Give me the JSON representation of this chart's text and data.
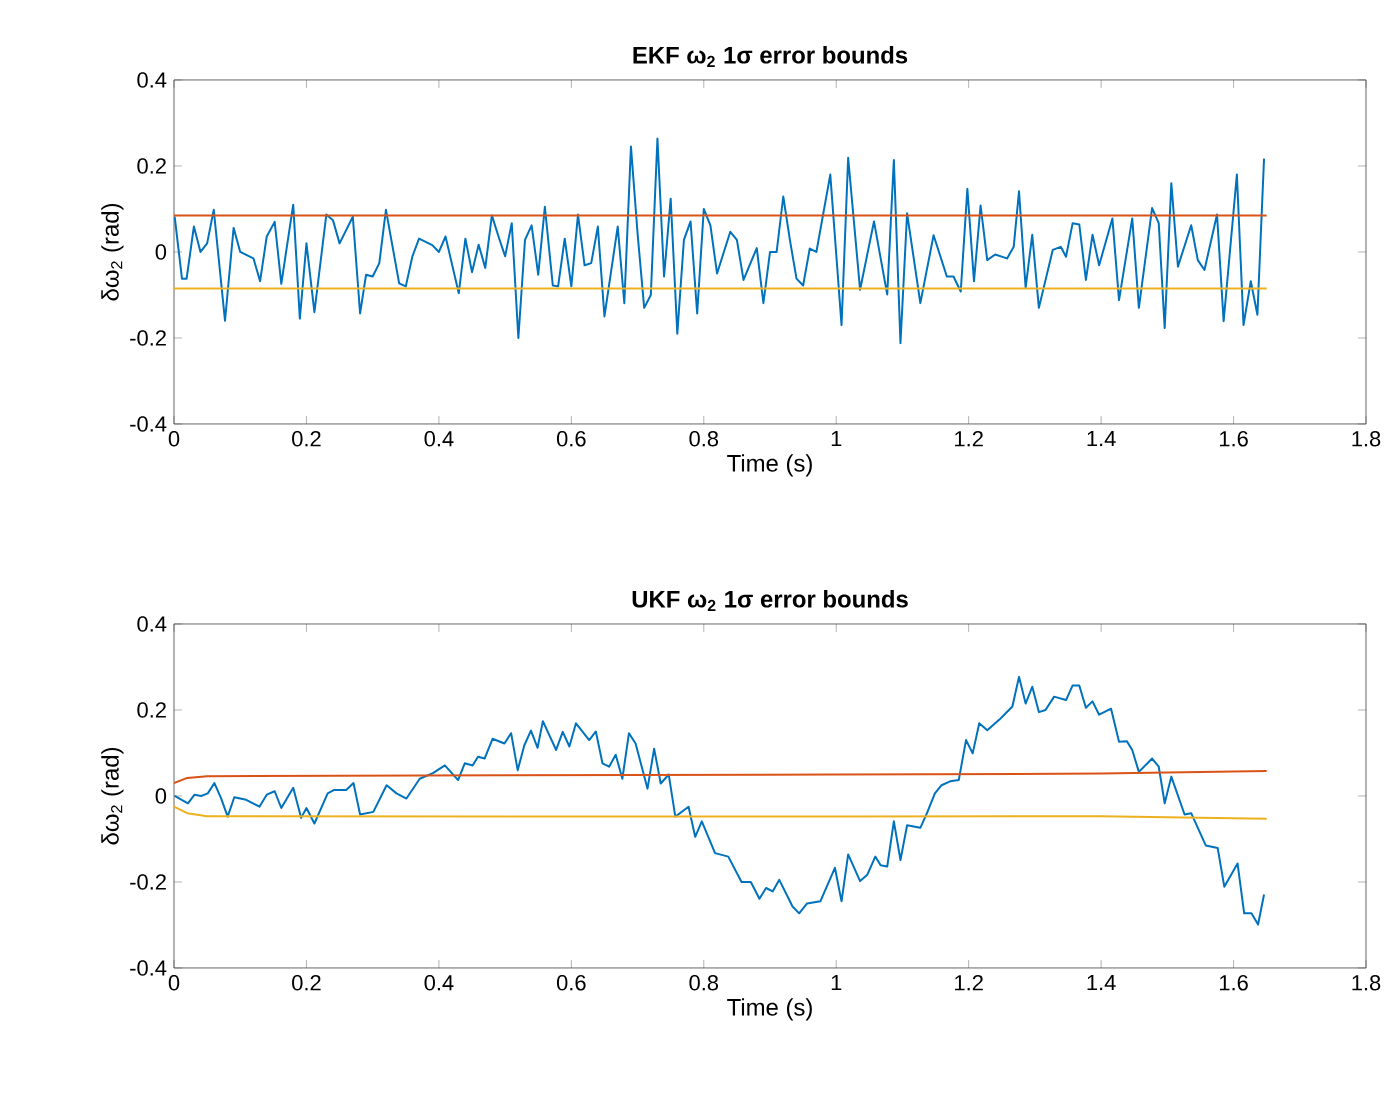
{
  "chart_data": [
    {
      "type": "line",
      "title": "EKF ω$_{2}$ 1σ error bounds",
      "xlabel": "Time (s)",
      "ylabel": "δω$_{2}$ (rad)",
      "xlim": [
        0,
        1.8
      ],
      "ylim": [
        -0.4,
        0.4
      ],
      "xticks": [
        0,
        0.2,
        0.4,
        0.6,
        0.8,
        1,
        1.2,
        1.4,
        1.6,
        1.8
      ],
      "yticks": [
        -0.4,
        -0.2,
        0,
        0.2,
        0.4
      ],
      "series": [
        {
          "color": "#0072bd",
          "x": [
            0.001,
            0.012,
            0.019,
            0.03,
            0.04,
            0.05,
            0.06,
            0.077,
            0.09,
            0.1,
            0.12,
            0.13,
            0.14,
            0.152,
            0.162,
            0.18,
            0.19,
            0.2,
            0.212,
            0.23,
            0.24,
            0.25,
            0.27,
            0.281,
            0.29,
            0.3,
            0.31,
            0.32,
            0.34,
            0.35,
            0.36,
            0.37,
            0.39,
            0.4,
            0.41,
            0.43,
            0.44,
            0.45,
            0.46,
            0.47,
            0.48,
            0.49,
            0.5,
            0.51,
            0.52,
            0.53,
            0.54,
            0.55,
            0.56,
            0.572,
            0.58,
            0.59,
            0.6,
            0.61,
            0.62,
            0.63,
            0.64,
            0.65,
            0.67,
            0.68,
            0.69,
            0.7,
            0.71,
            0.72,
            0.73,
            0.74,
            0.75,
            0.76,
            0.77,
            0.78,
            0.79,
            0.8,
            0.81,
            0.82,
            0.84,
            0.85,
            0.86,
            0.88,
            0.89,
            0.9,
            0.91,
            0.92,
            0.93,
            0.94,
            0.95,
            0.96,
            0.97,
            0.991,
            1.008,
            1.018,
            1.036,
            1.057,
            1.077,
            1.087,
            1.097,
            1.107,
            1.127,
            1.147,
            1.167,
            1.177,
            1.188,
            1.198,
            1.208,
            1.218,
            1.228,
            1.24,
            1.258,
            1.268,
            1.276,
            1.286,
            1.296,
            1.306,
            1.327,
            1.339,
            1.347,
            1.357,
            1.367,
            1.377,
            1.387,
            1.397,
            1.417,
            1.427,
            1.447,
            1.457,
            1.477,
            1.487,
            1.496,
            1.506,
            1.516,
            1.536,
            1.546,
            1.556,
            1.575,
            1.585,
            1.605,
            1.615,
            1.626,
            1.636,
            1.646
          ],
          "values": [
            0.082,
            -0.062,
            -0.062,
            0.059,
            0,
            0.02,
            0.098,
            -0.16,
            0.056,
            0,
            -0.015,
            -0.068,
            0.036,
            0.07,
            -0.074,
            0.11,
            -0.155,
            0.02,
            -0.14,
            0.087,
            0.074,
            0.02,
            0.082,
            -0.143,
            -0.053,
            -0.057,
            -0.026,
            0.098,
            -0.073,
            -0.08,
            -0.01,
            0.031,
            0.016,
            0,
            0.036,
            -0.096,
            0.031,
            -0.047,
            0.017,
            -0.037,
            0.085,
            0.036,
            -0.01,
            0.067,
            -0.2,
            0.028,
            0.062,
            -0.053,
            0.105,
            -0.078,
            -0.08,
            0.031,
            -0.08,
            0.087,
            -0.031,
            -0.026,
            0.059,
            -0.15,
            0.059,
            -0.119,
            0.245,
            0.043,
            -0.13,
            -0.1,
            0.264,
            -0.057,
            0.124,
            -0.19,
            0.028,
            0.071,
            -0.143,
            0.1,
            0.062,
            -0.05,
            0.047,
            0.028,
            -0.065,
            0.009,
            -0.119,
            0,
            0,
            0.129,
            0.028,
            -0.062,
            -0.078,
            0.008,
            0,
            0.18,
            -0.17,
            0.219,
            -0.088,
            0.071,
            -0.099,
            0.214,
            -0.212,
            0.09,
            -0.119,
            0.039,
            -0.057,
            -0.057,
            -0.092,
            0.147,
            -0.068,
            0.108,
            -0.019,
            -0.006,
            -0.015,
            0.012,
            0.141,
            -0.083,
            0.04,
            -0.13,
            0.005,
            0.012,
            -0.011,
            0.067,
            0.064,
            -0.065,
            0.04,
            -0.031,
            0.078,
            -0.112,
            0.078,
            -0.13,
            0.102,
            0.067,
            -0.177,
            0.16,
            -0.034,
            0.062,
            -0.019,
            -0.042,
            0.087,
            -0.161,
            0.18,
            -0.17,
            -0.068,
            -0.146,
            0.217
          ]
        },
        {
          "color": "#d95319",
          "x": [
            0,
            1.65
          ],
          "values": [
            0.085,
            0.085
          ]
        },
        {
          "color": "#edb120",
          "x": [
            0,
            1.65
          ],
          "values": [
            -0.085,
            -0.085
          ]
        }
      ]
    },
    {
      "type": "line",
      "title": "UKF ω$_{2}$ 1σ error bounds",
      "xlabel": "Time (s)",
      "ylabel": "δω$_{2}$ (rad)",
      "xlim": [
        0,
        1.8
      ],
      "ylim": [
        -0.4,
        0.4
      ],
      "xticks": [
        0,
        0.2,
        0.4,
        0.6,
        0.8,
        1,
        1.2,
        1.4,
        1.6,
        1.8
      ],
      "yticks": [
        -0.4,
        -0.2,
        0,
        0.2,
        0.4
      ],
      "series": [
        {
          "color": "#0072bd",
          "x": [
            0.001,
            0.021,
            0.031,
            0.041,
            0.051,
            0.061,
            0.071,
            0.081,
            0.091,
            0.109,
            0.129,
            0.14,
            0.152,
            0.162,
            0.18,
            0.192,
            0.2,
            0.212,
            0.232,
            0.242,
            0.26,
            0.271,
            0.281,
            0.301,
            0.321,
            0.336,
            0.351,
            0.371,
            0.391,
            0.409,
            0.429,
            0.439,
            0.451,
            0.459,
            0.469,
            0.481,
            0.499,
            0.509,
            0.519,
            0.529,
            0.539,
            0.549,
            0.557,
            0.577,
            0.587,
            0.597,
            0.607,
            0.627,
            0.637,
            0.647,
            0.657,
            0.667,
            0.677,
            0.687,
            0.697,
            0.715,
            0.725,
            0.735,
            0.747,
            0.757,
            0.777,
            0.787,
            0.797,
            0.817,
            0.837,
            0.857,
            0.871,
            0.884,
            0.894,
            0.904,
            0.914,
            0.934,
            0.944,
            0.956,
            0.976,
            0.998,
            1.008,
            1.018,
            1.036,
            1.047,
            1.059,
            1.067,
            1.077,
            1.087,
            1.097,
            1.107,
            1.127,
            1.137,
            1.149,
            1.159,
            1.172,
            1.185,
            1.196,
            1.206,
            1.216,
            1.228,
            1.246,
            1.266,
            1.276,
            1.286,
            1.296,
            1.306,
            1.316,
            1.329,
            1.347,
            1.357,
            1.367,
            1.377,
            1.387,
            1.397,
            1.415,
            1.427,
            1.439,
            1.447,
            1.457,
            1.477,
            1.487,
            1.496,
            1.506,
            1.526,
            1.536,
            1.558,
            1.576,
            1.586,
            1.606,
            1.616,
            1.627,
            1.637,
            1.646
          ],
          "values": [
            0,
            -0.017,
            0.003,
            0,
            0.006,
            0.03,
            -0.005,
            -0.048,
            -0.003,
            -0.009,
            -0.025,
            0.003,
            0.011,
            -0.028,
            0.019,
            -0.051,
            -0.028,
            -0.064,
            0.006,
            0.014,
            0.014,
            0.03,
            -0.043,
            -0.037,
            0.025,
            0.006,
            -0.006,
            0.04,
            0.053,
            0.071,
            0.037,
            0.076,
            0.071,
            0.091,
            0.087,
            0.133,
            0.122,
            0.146,
            0.06,
            0.118,
            0.152,
            0.112,
            0.174,
            0.107,
            0.149,
            0.115,
            0.169,
            0.13,
            0.15,
            0.076,
            0.068,
            0.096,
            0.04,
            0.146,
            0.122,
            0.017,
            0.11,
            0.029,
            0.05,
            -0.048,
            -0.025,
            -0.095,
            -0.059,
            -0.133,
            -0.141,
            -0.2,
            -0.2,
            -0.239,
            -0.214,
            -0.222,
            -0.195,
            -0.257,
            -0.273,
            -0.25,
            -0.245,
            -0.167,
            -0.245,
            -0.136,
            -0.198,
            -0.183,
            -0.141,
            -0.161,
            -0.164,
            -0.059,
            -0.149,
            -0.068,
            -0.074,
            -0.04,
            0.006,
            0.025,
            0.034,
            0.037,
            0.13,
            0.099,
            0.169,
            0.153,
            0.177,
            0.208,
            0.277,
            0.215,
            0.254,
            0.195,
            0.2,
            0.231,
            0.223,
            0.257,
            0.257,
            0.205,
            0.22,
            0.189,
            0.203,
            0.126,
            0.127,
            0.107,
            0.056,
            0.087,
            0.068,
            -0.017,
            0.045,
            -0.043,
            -0.04,
            -0.115,
            -0.121,
            -0.211,
            -0.157,
            -0.273,
            -0.273,
            -0.299,
            -0.229
          ]
        },
        {
          "color": "#d95319",
          "x": [
            0,
            0.02,
            0.05,
            0.5,
            1.0,
            1.4,
            1.65
          ],
          "values": [
            0.03,
            0.042,
            0.046,
            0.048,
            0.05,
            0.052,
            0.058
          ]
        },
        {
          "color": "#edb120",
          "x": [
            0,
            0.02,
            0.05,
            0.5,
            1.0,
            1.4,
            1.65
          ],
          "values": [
            -0.025,
            -0.04,
            -0.047,
            -0.048,
            -0.048,
            -0.047,
            -0.053
          ]
        }
      ]
    }
  ]
}
